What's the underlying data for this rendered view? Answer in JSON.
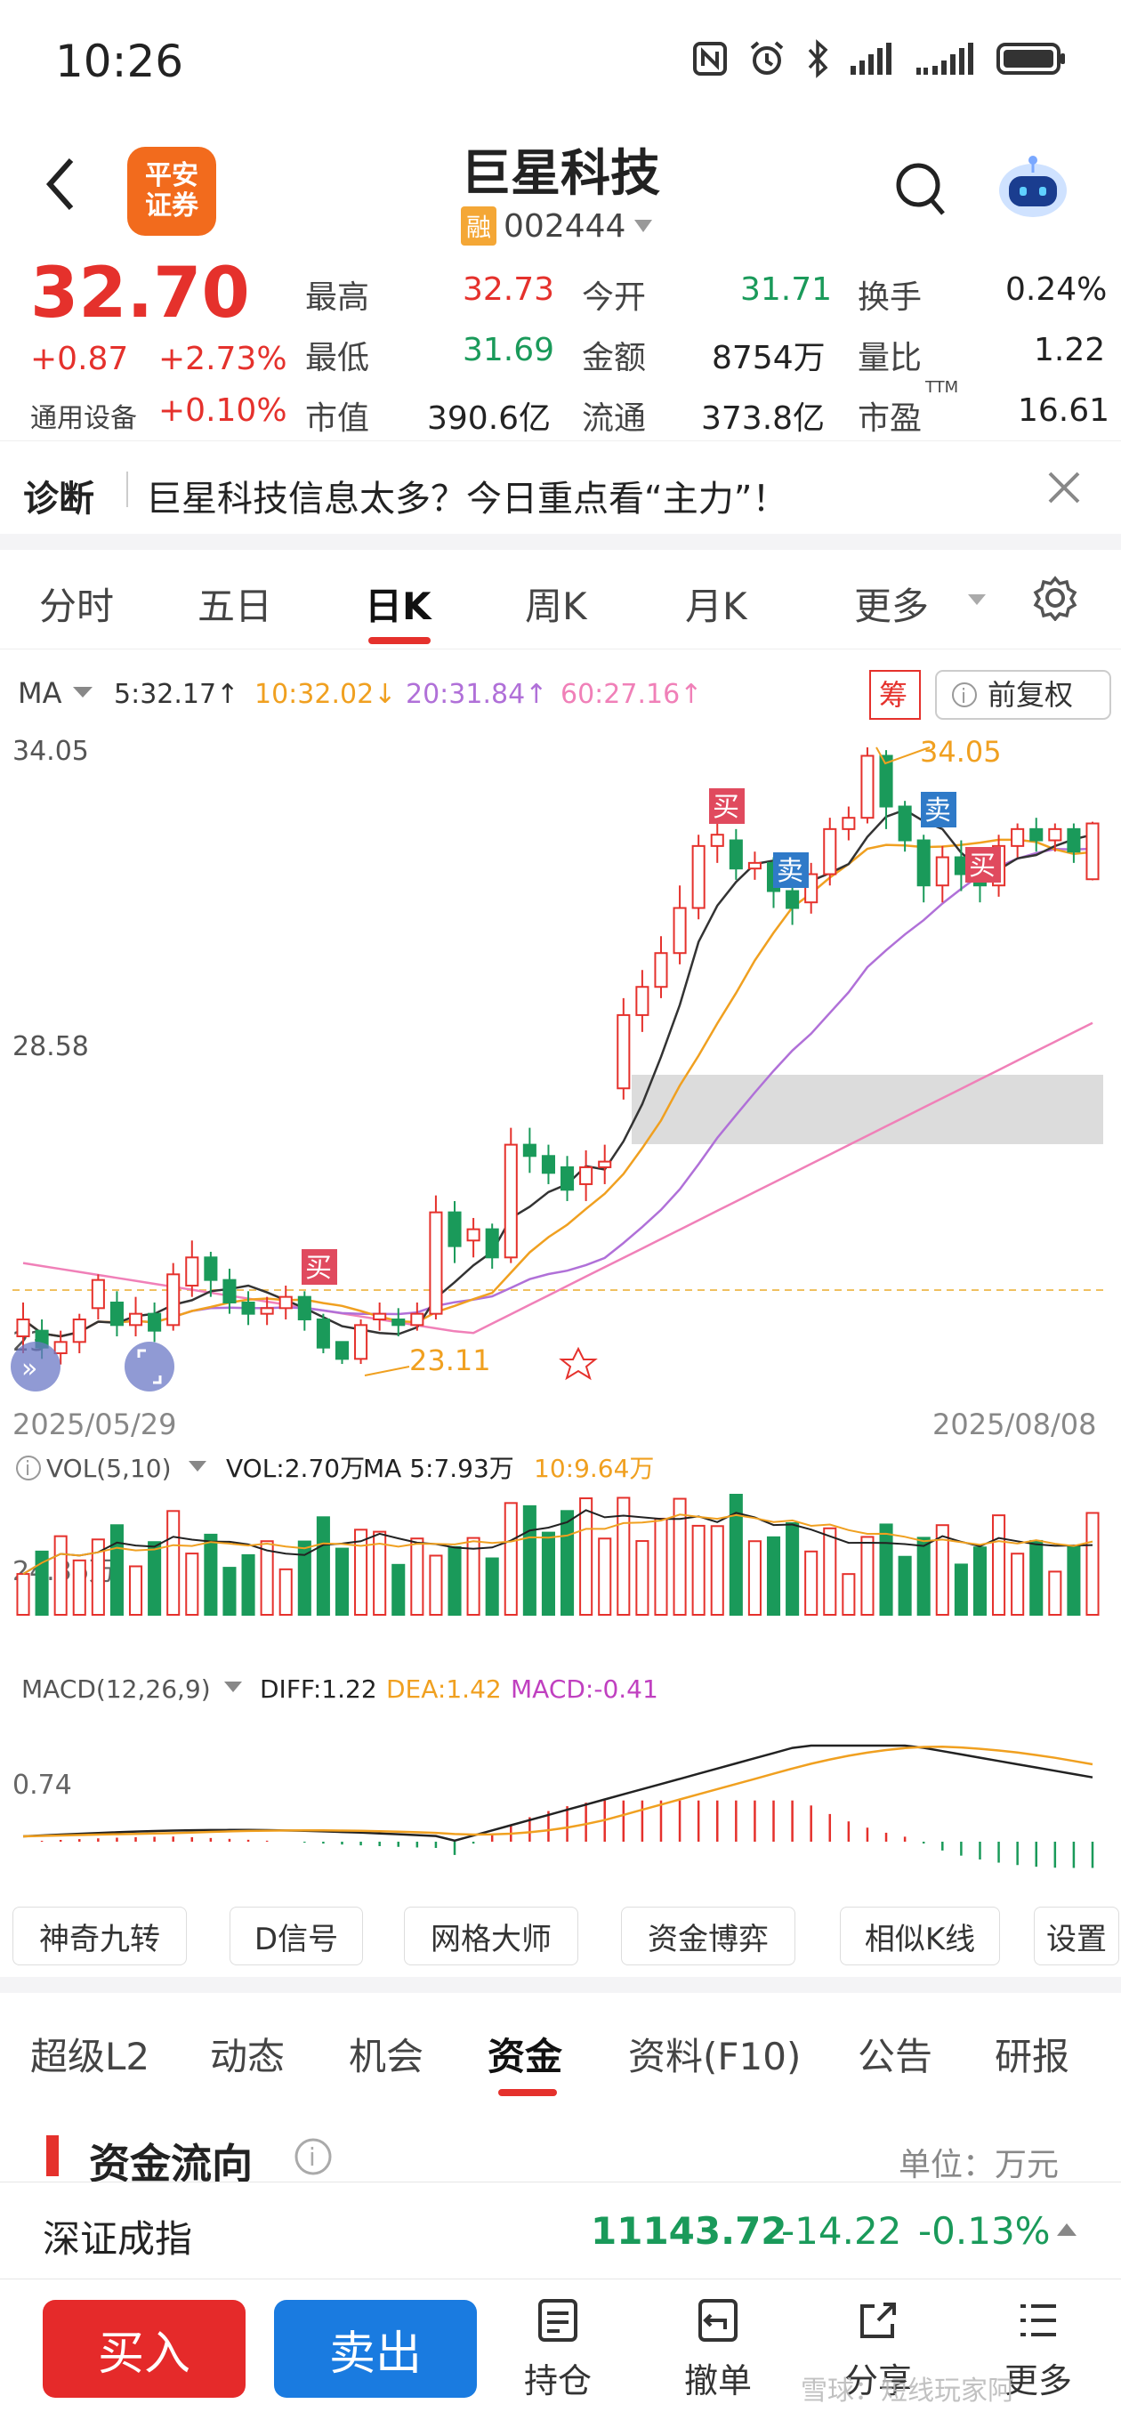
{
  "status": {
    "time": "10:26"
  },
  "header": {
    "title": "巨星科技",
    "code": "002444",
    "rong_badge": "融",
    "logo_line1": "平安",
    "logo_line2": "证券"
  },
  "quote": {
    "price": "32.70",
    "change": "+0.87",
    "change_pct": "+2.73%",
    "sector": "通用设备",
    "sector_pct": "+0.10%",
    "high_label": "最高",
    "high": "32.73",
    "open_label": "今开",
    "open": "31.71",
    "turnover_label": "换手",
    "turnover": "0.24%",
    "low_label": "最低",
    "low": "31.69",
    "amount_label": "金额",
    "amount": "8754万",
    "volratio_label": "量比",
    "volratio": "1.22",
    "mcap_label": "市值",
    "mcap": "390.6亿",
    "float_label": "流通",
    "float": "373.8亿",
    "pe_label": "市盈",
    "pe_sup": "TTM",
    "pe": "16.61"
  },
  "diagnosis": {
    "label": "诊断",
    "text": "巨星科技信息太多？今日重点看“主力”！"
  },
  "chart_tabs": [
    "分时",
    "五日",
    "日K",
    "周K",
    "月K",
    "更多"
  ],
  "active_chart_tab": "日K",
  "ma_bar": {
    "label": "MA",
    "ma5": "5:32.17↑",
    "ma10": "10:32.02↓",
    "ma20": "20:31.84↑",
    "ma60": "60:27.16↑",
    "chou": "筹",
    "fq": "前复权"
  },
  "price_axis": {
    "top": "34.05",
    "mid": "28.58",
    "low_clip": "23"
  },
  "annotations": {
    "high": "34.05",
    "low": "23.11",
    "buy": "买",
    "sell": "卖"
  },
  "dates": {
    "start": "2025/05/29",
    "end": "2025/08/08"
  },
  "vol_bar": {
    "label": "VOL(5,10)",
    "vol": "VOL:2.70万",
    "ma5": "MA 5:7.93万",
    "ma10": "10:9.64万",
    "axis": "24.36万"
  },
  "macd_bar": {
    "label": "MACD(12,26,9)",
    "diff": "DIFF:1.22",
    "dea": "DEA:1.42",
    "macd": "MACD:-0.41",
    "axis": "0.74"
  },
  "tools": [
    "神奇九转",
    "D信号",
    "网格大师",
    "资金博弈",
    "相似K线",
    "设置"
  ],
  "section_tabs": [
    "超级L2",
    "动态",
    "机会",
    "资金",
    "资料(F10)",
    "公告",
    "研报"
  ],
  "active_section_tab": "资金",
  "fund_flow": {
    "title": "资金流向",
    "unit": "单位：万元"
  },
  "index": {
    "name": "深证成指",
    "value": "11143.72",
    "change": "-14.22",
    "pct": "-0.13%"
  },
  "bottom": {
    "buy": "买入",
    "sell": "卖出",
    "hold": "持仓",
    "cancel": "撤单",
    "share": "分享",
    "more": "更多",
    "watermark": "雪球：短线玩家阿"
  },
  "colors": {
    "up": "#e5312c",
    "down": "#1a9a5a",
    "ma5": "#333333",
    "ma10": "#f0a020",
    "ma20": "#b070d8",
    "ma60": "#f080b8",
    "accent_orange": "#f26b1d",
    "buy_btn": "#e52a2a",
    "sell_btn": "#1a7be0"
  },
  "chart_data": {
    "type": "candlestick",
    "x_range": [
      "2025/05/29",
      "2025/08/08"
    ],
    "ylim": [
      23.11,
      34.05
    ],
    "candles": [
      [
        23.6,
        23.9,
        23.3,
        24.2
      ],
      [
        23.7,
        23.4,
        23.2,
        23.9
      ],
      [
        23.3,
        23.5,
        23.1,
        23.7
      ],
      [
        23.5,
        23.9,
        23.3,
        24.0
      ],
      [
        24.1,
        24.6,
        23.9,
        24.7
      ],
      [
        24.2,
        23.8,
        23.6,
        24.4
      ],
      [
        23.8,
        24.0,
        23.6,
        24.3
      ],
      [
        24.0,
        23.7,
        23.5,
        24.2
      ],
      [
        23.8,
        24.7,
        23.7,
        24.9
      ],
      [
        24.5,
        25.0,
        24.3,
        25.3
      ],
      [
        25.0,
        24.6,
        24.3,
        25.1
      ],
      [
        24.6,
        24.2,
        24.0,
        24.8
      ],
      [
        24.2,
        24.0,
        23.8,
        24.4
      ],
      [
        24.0,
        24.1,
        23.8,
        24.3
      ],
      [
        24.1,
        24.3,
        23.9,
        24.5
      ],
      [
        24.3,
        23.9,
        23.7,
        24.4
      ],
      [
        23.9,
        23.4,
        23.3,
        24.0
      ],
      [
        23.5,
        23.2,
        23.11,
        23.5
      ],
      [
        23.2,
        23.8,
        23.11,
        23.9
      ],
      [
        23.9,
        24.0,
        23.7,
        24.2
      ],
      [
        23.9,
        23.8,
        23.6,
        24.1
      ],
      [
        23.8,
        24.0,
        23.7,
        24.2
      ],
      [
        24.0,
        25.8,
        23.9,
        26.1
      ],
      [
        25.8,
        25.2,
        24.9,
        26.0
      ],
      [
        25.3,
        25.5,
        25.0,
        25.7
      ],
      [
        25.5,
        25.0,
        24.8,
        25.6
      ],
      [
        25.0,
        27.0,
        24.9,
        27.3
      ],
      [
        27.0,
        26.8,
        26.5,
        27.3
      ],
      [
        26.8,
        26.5,
        26.3,
        27.0
      ],
      [
        26.6,
        26.2,
        26.0,
        26.8
      ],
      [
        26.3,
        26.6,
        26.0,
        26.9
      ],
      [
        26.6,
        26.7,
        26.3,
        27.0
      ],
      [
        28.0,
        29.3,
        27.8,
        29.6
      ],
      [
        29.3,
        29.8,
        29.0,
        30.1
      ],
      [
        29.8,
        30.4,
        29.6,
        30.7
      ],
      [
        30.4,
        31.2,
        30.2,
        31.6
      ],
      [
        31.2,
        32.3,
        31.0,
        32.5
      ],
      [
        32.3,
        32.5,
        32.0,
        32.9
      ],
      [
        32.4,
        31.9,
        31.7,
        32.6
      ],
      [
        31.9,
        32.0,
        31.7,
        32.2
      ],
      [
        32.0,
        31.5,
        31.2,
        32.1
      ],
      [
        31.5,
        31.2,
        30.9,
        31.6
      ],
      [
        31.3,
        31.8,
        31.1,
        32.0
      ],
      [
        31.8,
        32.6,
        31.6,
        32.8
      ],
      [
        32.6,
        32.8,
        32.4,
        33.0
      ],
      [
        32.8,
        33.9,
        32.7,
        34.05
      ],
      [
        33.9,
        33.0,
        32.6,
        34.0
      ],
      [
        33.0,
        32.4,
        32.2,
        33.1
      ],
      [
        32.4,
        31.6,
        31.3,
        32.5
      ],
      [
        31.6,
        32.1,
        31.3,
        32.3
      ],
      [
        32.1,
        31.8,
        31.5,
        32.4
      ],
      [
        31.8,
        31.6,
        31.3,
        32.0
      ],
      [
        31.6,
        32.3,
        31.4,
        32.5
      ],
      [
        32.3,
        32.6,
        32.1,
        32.7
      ],
      [
        32.6,
        32.4,
        32.2,
        32.8
      ],
      [
        32.4,
        32.6,
        32.2,
        32.7
      ],
      [
        32.6,
        32.2,
        32.0,
        32.7
      ],
      [
        31.71,
        32.7,
        31.69,
        32.73
      ]
    ],
    "volume_ylim": [
      0,
      24.36
    ],
    "macd_ylim": [
      -0.6,
      1.6
    ]
  }
}
